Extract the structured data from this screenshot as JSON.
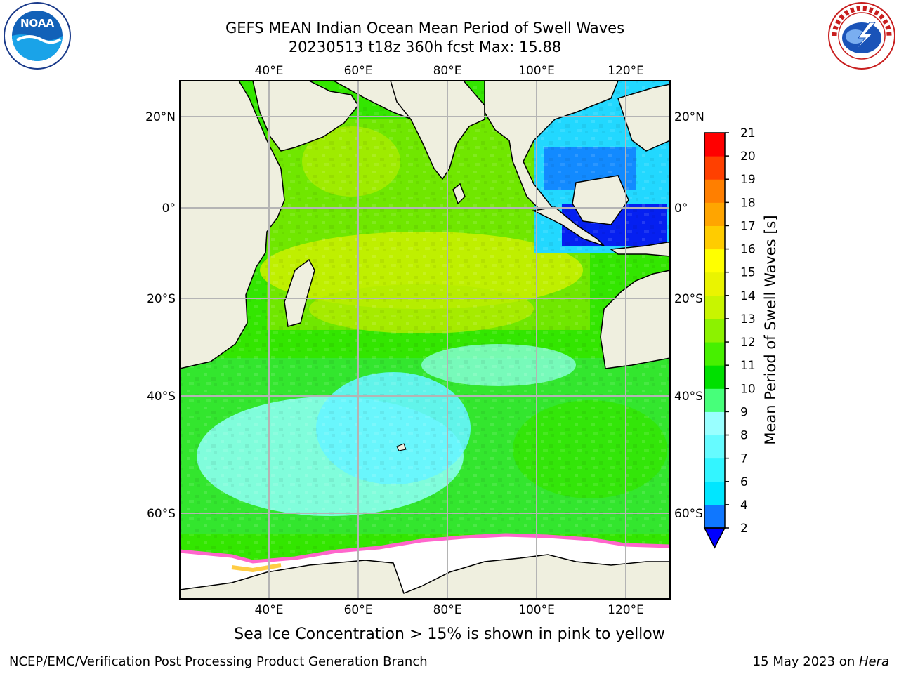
{
  "title": {
    "line1": "GEFS MEAN Indian Ocean Mean Period of Swell Waves",
    "line2": "20230513 t18z 360h fcst   Max: 15.88"
  },
  "logos": {
    "left": {
      "name": "noaa-logo",
      "text": "NOAA",
      "ring_text": "NATIONAL OCEANIC AND ATMOSPHERIC ADMINISTRATION · U.S. DEPARTMENT OF COMMERCE"
    },
    "right": {
      "name": "nws-logo",
      "ring_text": "NATIONAL WEATHER SERVICE"
    }
  },
  "map": {
    "lon_ticks": [
      "40°E",
      "60°E",
      "80°E",
      "100°E",
      "120°E"
    ],
    "lat_ticks_left": [
      "20°N",
      "0°",
      "20°S",
      "40°S",
      "60°S"
    ],
    "lat_ticks_right": [
      "20°N",
      "0°",
      "20°S",
      "40°S",
      "60°S"
    ],
    "colors": {
      "land": "#efefdf",
      "ice": "#ffffff",
      "grid": "#b4b4b4"
    }
  },
  "colorbar": {
    "label": "Mean Period of Swell Waves [s]",
    "ticks": [
      "2",
      "4",
      "6",
      "7",
      "8",
      "9",
      "10",
      "11",
      "12",
      "13",
      "14",
      "15",
      "16",
      "17",
      "18",
      "19",
      "20",
      "21"
    ],
    "colors": [
      "#0f77ff",
      "#00e6ff",
      "#33f5ff",
      "#66fbff",
      "#99ffff",
      "#47ff7a",
      "#00e000",
      "#47f000",
      "#8cf200",
      "#c8f500",
      "#eaf400",
      "#ffff00",
      "#ffcc00",
      "#ffa500",
      "#ff7f00",
      "#ff4000",
      "#ff0000"
    ],
    "under_color": "#0000ff"
  },
  "caption": "Sea Ice Concentration > 15% is shown in pink to yellow",
  "footer": {
    "left": "NCEP/EMC/Verification Post Processing Product Generation Branch",
    "right_date": "15 May 2023 on ",
    "right_machine": "Hera"
  }
}
